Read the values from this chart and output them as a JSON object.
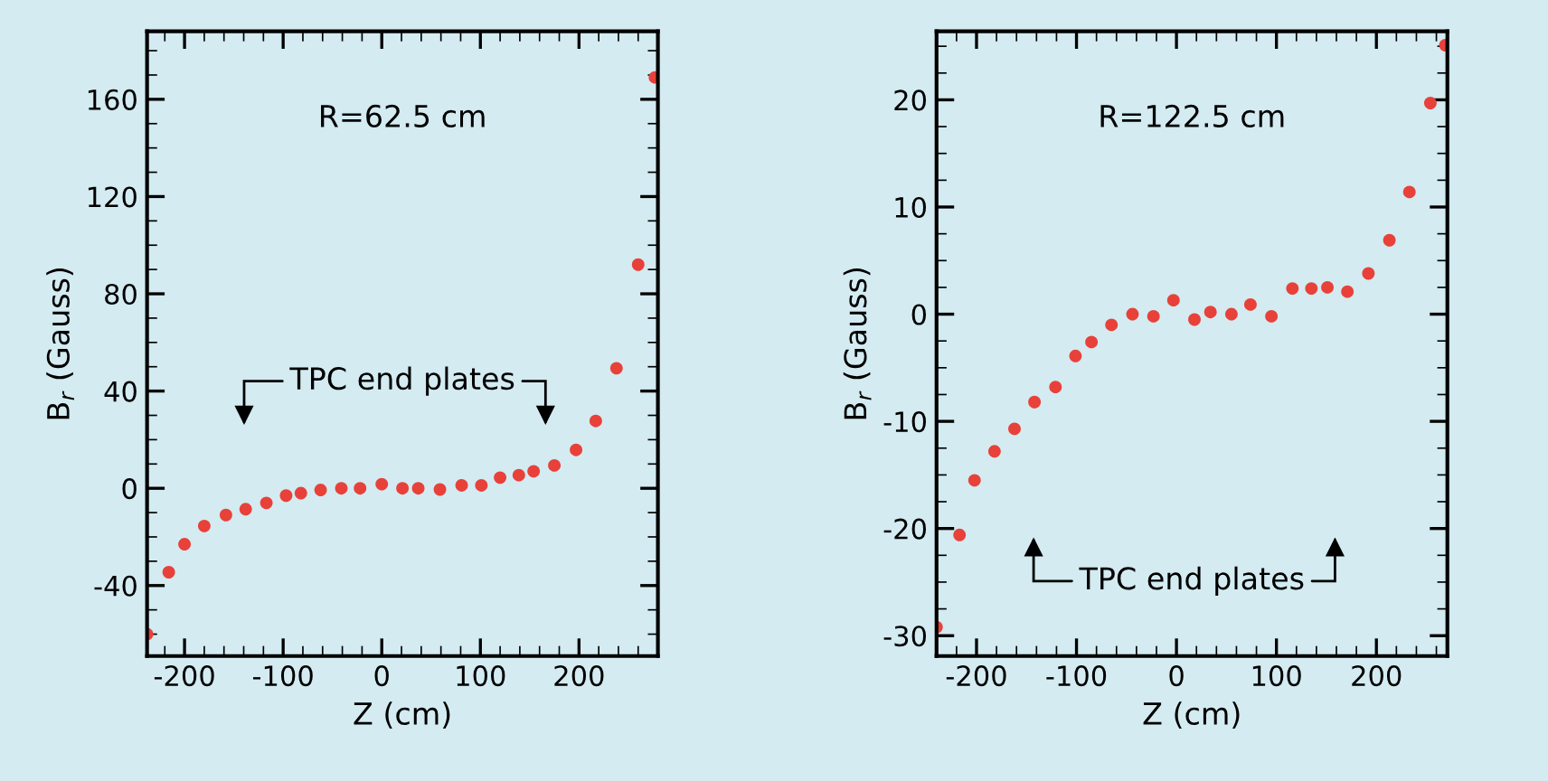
{
  "chart_data": [
    {
      "type": "scatter",
      "xlabel": "Z (cm)",
      "ylabel": "B$_{r}$ (Gauss)",
      "marker": "circle",
      "grid": false,
      "legend": false,
      "annotations": [
        "R=62.5 cm",
        "TPC end plates"
      ],
      "xlim": [
        -238,
        280
      ],
      "ylim": [
        -69,
        188
      ],
      "xticks": [
        -200,
        -100,
        0,
        100,
        200
      ],
      "yticks": [
        -40,
        0,
        40,
        80,
        120,
        160
      ],
      "series": [
        {
          "color": "#e8413a",
          "x": [
            -238,
            -216,
            -200,
            -180,
            -158,
            -138,
            -117,
            -97,
            -82,
            -62,
            -41,
            -22,
            0,
            21,
            37,
            59,
            81,
            101,
            120,
            139,
            154,
            175,
            197,
            217,
            238,
            260,
            277
          ],
          "values": [
            -60,
            -34.5,
            -23,
            -15.5,
            -11,
            -8.6,
            -6,
            -3,
            -2,
            -0.7,
            0,
            0,
            1.7,
            0,
            0,
            -0.5,
            1.2,
            1.2,
            4.4,
            5.4,
            7,
            9.4,
            15.8,
            27.7,
            49.4,
            92,
            169
          ]
        }
      ]
    },
    {
      "type": "scatter",
      "xlabel": "Z (cm)",
      "ylabel": "B$_{r}$ (Gauss)",
      "marker": "circle",
      "grid": false,
      "legend": false,
      "annotations": [
        "R=122.5 cm",
        "TPC end plates"
      ],
      "xlim": [
        -240,
        271
      ],
      "ylim": [
        -31.9,
        26.4
      ],
      "xticks": [
        -200,
        -100,
        0,
        100,
        200
      ],
      "yticks": [
        -30,
        -20,
        -10,
        0,
        10,
        20
      ],
      "series": [
        {
          "color": "#e8413a",
          "x": [
            -240,
            -217,
            -202,
            -182,
            -162,
            -142,
            -121,
            -101,
            -85,
            -65,
            -44,
            -23,
            -3,
            18,
            34,
            55,
            74,
            95,
            116,
            135,
            151,
            171,
            192,
            213,
            233,
            254,
            269
          ],
          "values": [
            -29.2,
            -20.6,
            -15.5,
            -12.8,
            -10.7,
            -8.2,
            -6.8,
            -3.9,
            -2.6,
            -1.0,
            0,
            -0.2,
            1.3,
            -0.5,
            0.2,
            0,
            0.9,
            -0.2,
            2.4,
            2.4,
            2.5,
            2.1,
            3.8,
            6.9,
            11.4,
            19.7,
            25.1
          ]
        }
      ]
    }
  ]
}
